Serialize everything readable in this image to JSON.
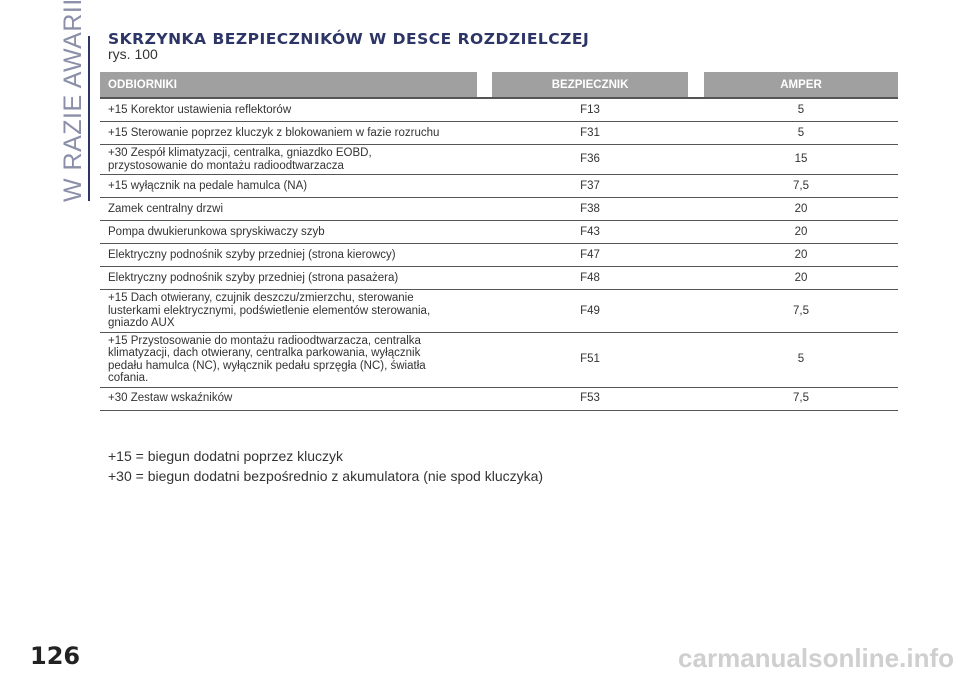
{
  "section": "W RAZIE AWARII",
  "title": "SKRZYNKA BEZPIECZNIKÓW W DESCE ROZDZIELCZEJ",
  "subtitle": "rys. 100",
  "headers": [
    "ODBIORNIKI",
    "BEZPIECZNIK",
    "AMPER"
  ],
  "rows": [
    [
      "+15 Korektor ustawienia reflektorów",
      "F13",
      "5"
    ],
    [
      "+15 Sterowanie poprzez kluczyk z blokowaniem w fazie rozruchu",
      "F31",
      "5"
    ],
    [
      "+30 Zespół klimatyzacji, centralka, gniazdko EOBD,\nprzystosowanie do montażu radioodtwarzacza",
      "F36",
      "15"
    ],
    [
      "+15 wyłącznik na pedale hamulca (NA)",
      "F37",
      "7,5"
    ],
    [
      "Zamek centralny drzwi",
      "F38",
      "20"
    ],
    [
      "Pompa dwukierunkowa spryskiwaczy szyb",
      "F43",
      "20"
    ],
    [
      "Elektryczny podnośnik szyby przedniej (strona kierowcy)",
      "F47",
      "20"
    ],
    [
      "Elektryczny podnośnik szyby przedniej (strona pasażera)",
      "F48",
      "20"
    ],
    [
      "+15 Dach otwierany, czujnik deszczu/zmierzchu, sterowanie\nlusterkami elektrycznymi, podświetlenie elementów sterowania,\ngniazdo AUX",
      "F49",
      "7,5"
    ],
    [
      "+15 Przystosowanie do montażu radioodtwarzacza, centralka\nklimatyzacji, dach otwierany, centralka parkowania, wyłącznik\npedału hamulca (NC), wyłącznik pedału sprzęgła (NC), światła\ncofania.",
      "F51",
      "5"
    ],
    [
      "+30 Zestaw wskaźników",
      "F53",
      "7,5"
    ]
  ],
  "notes": [
    "+15 = biegun dodatni poprzez kluczyk",
    "+30 = biegun dodatni bezpośrednio z akumulatora (nie spod kluczyka)"
  ],
  "page_number": "126",
  "watermark": "carmanualsonline.info"
}
